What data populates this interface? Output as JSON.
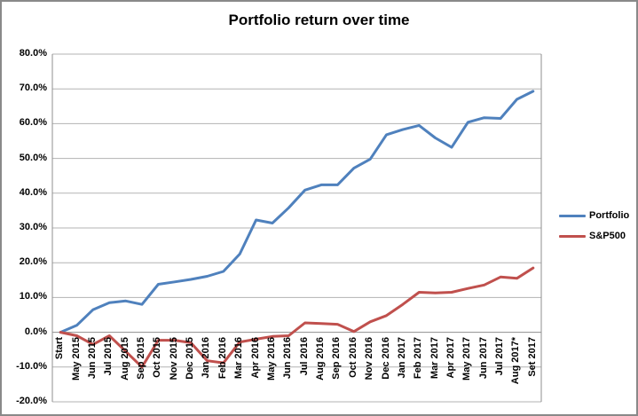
{
  "chart_data": {
    "type": "line",
    "title": "Portfolio return over time",
    "xlabel": "",
    "ylabel": "",
    "grid": true,
    "legend_position": "right",
    "ylim": [
      -20,
      80
    ],
    "y_tick_step": 10,
    "y_tick_labels": [
      "80.0%",
      "70.0%",
      "60.0%",
      "50.0%",
      "40.0%",
      "30.0%",
      "20.0%",
      "10.0%",
      "0.0%",
      "-10.0%",
      "-20.0%"
    ],
    "categories": [
      "Start",
      "May 2015",
      "Jun 2015",
      "Jul 2015",
      "Aug 2015",
      "Sep 2015",
      "Oct 2015",
      "Nov 2015",
      "Dec 2015",
      "Jan 2016",
      "Feb 2016",
      "Mar 2016",
      "Apr 2016",
      "May 2016",
      "Jun 2016",
      "Jul 2016",
      "Aug 2016",
      "Sep 2016",
      "Oct 2016",
      "Nov 2016",
      "Dec 2016",
      "Jan 2017",
      "Feb 2017",
      "Mar 2017",
      "Apr 2017",
      "May 2017",
      "Jun 2017",
      "Jul 2017",
      "Aug 2017*",
      "Set 2017"
    ],
    "series": [
      {
        "name": "Portfolio",
        "color": "#4F81BD",
        "values": [
          0,
          2,
          6.5,
          8.5,
          9,
          8,
          13.8,
          14.5,
          15.2,
          16.1,
          17.5,
          22.5,
          32.3,
          31.4,
          35.8,
          40.9,
          42.4,
          42.4,
          47.2,
          49.8,
          56.8,
          58.3,
          59.5,
          55.9,
          53.2,
          60.4,
          61.7,
          61.5,
          67,
          69.3
        ]
      },
      {
        "name": "S&P500",
        "color": "#C0504D",
        "values": [
          0,
          -1,
          -3.5,
          -1,
          -5.5,
          -10,
          -2.3,
          -2.3,
          -3,
          -8.2,
          -8.8,
          -2.8,
          -2,
          -1.2,
          -1,
          2.7,
          2.5,
          2.3,
          0.2,
          3,
          4.8,
          8,
          11.5,
          11.3,
          11.5,
          12.6,
          13.6,
          15.9,
          15.5,
          18.5
        ]
      }
    ]
  }
}
